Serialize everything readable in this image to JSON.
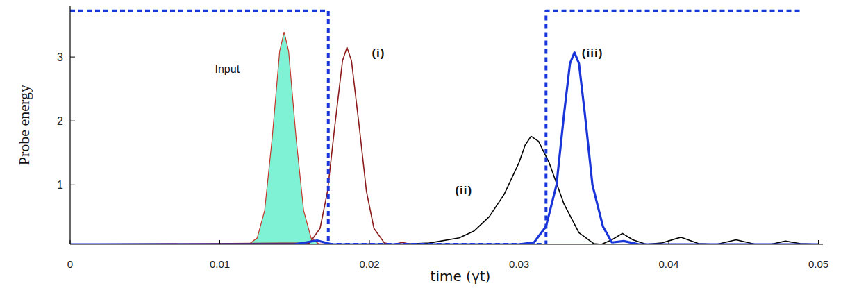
{
  "chart_data": {
    "type": "line",
    "x_label": "time (γt)",
    "y_label": "Probe energy",
    "xlim": [
      0,
      0.0503
    ],
    "ylim": [
      0.07,
      3.8
    ],
    "xticks": [
      0,
      0.01,
      0.02,
      0.03,
      0.04,
      0.05
    ],
    "yticks": [
      1,
      2,
      3
    ],
    "grid": false,
    "series": [
      {
        "name": "Input",
        "type": "area",
        "color": "#7ff2d6",
        "line_style": "solid",
        "x": [
          0,
          0.011,
          0.012,
          0.0125,
          0.013,
          0.0135,
          0.014,
          0.0143,
          0.0146,
          0.0151,
          0.0156,
          0.0161,
          0.0166,
          0.0176,
          0.05
        ],
        "values": [
          0.07,
          0.07,
          0.08,
          0.17,
          0.6,
          1.73,
          3.09,
          3.39,
          3.09,
          1.73,
          0.6,
          0.17,
          0.08,
          0.07,
          0.07
        ]
      },
      {
        "name": "(i)",
        "type": "line",
        "color": "#8b1a1a",
        "line_style": "solid",
        "x": [
          0,
          0.016,
          0.0167,
          0.0172,
          0.0177,
          0.0182,
          0.0185,
          0.0188,
          0.0193,
          0.0198,
          0.0203,
          0.021,
          0.0216,
          0.0222,
          0.0228,
          0.05
        ],
        "values": [
          0.07,
          0.09,
          0.32,
          0.9,
          1.95,
          2.94,
          3.15,
          2.94,
          1.95,
          0.9,
          0.32,
          0.09,
          0.07,
          0.1,
          0.07,
          0.07
        ]
      },
      {
        "name": "(ii)",
        "type": "line",
        "color": "#000000",
        "line_style": "solid",
        "x": [
          0,
          0.022,
          0.024,
          0.026,
          0.027,
          0.028,
          0.029,
          0.03,
          0.0304,
          0.0308,
          0.0313,
          0.032,
          0.033,
          0.034,
          0.035,
          0.0355,
          0.0362,
          0.0369,
          0.0376,
          0.0385,
          0.0395,
          0.0408,
          0.042,
          0.0432,
          0.0445,
          0.0458,
          0.0468,
          0.0478,
          0.0488,
          0.05
        ],
        "values": [
          0.07,
          0.07,
          0.09,
          0.17,
          0.28,
          0.5,
          0.85,
          1.35,
          1.62,
          1.76,
          1.68,
          1.35,
          0.7,
          0.25,
          0.08,
          0.07,
          0.14,
          0.24,
          0.14,
          0.07,
          0.09,
          0.18,
          0.08,
          0.07,
          0.14,
          0.07,
          0.07,
          0.12,
          0.08,
          0.07
        ]
      },
      {
        "name": "(iii)",
        "type": "line",
        "color": "#1a36d8",
        "line_style": "solid",
        "x": [
          0,
          0.015,
          0.0165,
          0.0175,
          0.03,
          0.031,
          0.0318,
          0.0325,
          0.033,
          0.0334,
          0.0337,
          0.034,
          0.0344,
          0.0349,
          0.0356,
          0.0362,
          0.037,
          0.038,
          0.05
        ],
        "values": [
          0.07,
          0.07,
          0.13,
          0.07,
          0.07,
          0.1,
          0.35,
          1.0,
          2.1,
          2.9,
          3.07,
          2.9,
          2.1,
          1.0,
          0.35,
          0.1,
          0.12,
          0.07,
          0.07
        ]
      },
      {
        "type": "line",
        "color": "#1a36d8",
        "line_style": "dashed",
        "x": [
          0,
          0.01725,
          0.01725,
          0.0318,
          0.0318,
          0.0489
        ],
        "values": [
          3.72,
          3.72,
          0.07,
          0.07,
          3.72,
          3.72
        ]
      }
    ]
  }
}
